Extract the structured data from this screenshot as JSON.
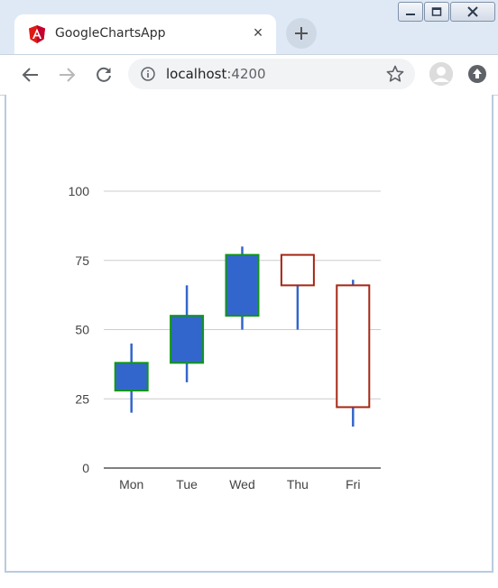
{
  "browser": {
    "tab_title": "GoogleChartsApp",
    "tab_close_glyph": "×",
    "new_tab_glyph": "+",
    "url_host": "localhost",
    "url_port": ":4200",
    "icons": [
      "angular-favicon",
      "back-icon",
      "forward-icon",
      "reload-icon",
      "info-icon",
      "star-icon",
      "avatar",
      "update-icon",
      "minimize-icon",
      "maximize-icon",
      "close-icon"
    ]
  },
  "chart_data": {
    "type": "candlestick",
    "categories": [
      "Mon",
      "Tue",
      "Wed",
      "Thu",
      "Fri"
    ],
    "candles": [
      {
        "low": 20,
        "open": 28,
        "close": 38,
        "high": 45
      },
      {
        "low": 31,
        "open": 38,
        "close": 55,
        "high": 66
      },
      {
        "low": 50,
        "open": 55,
        "close": 77,
        "high": 80
      },
      {
        "low": 50,
        "open": 77,
        "close": 66,
        "high": 77
      },
      {
        "low": 15,
        "open": 66,
        "close": 22,
        "high": 68
      }
    ],
    "y_ticks": [
      "0",
      "25",
      "50",
      "75",
      "100"
    ],
    "ylim": [
      0,
      100
    ],
    "grid": true,
    "rising_fill": "#3366cc",
    "rising_stroke": "#109618",
    "falling_fill": "#ffffff",
    "falling_stroke": "#a52714",
    "wick_color": "#3366cc",
    "gridline_color": "#cccccc",
    "baseline_color": "#333333"
  }
}
